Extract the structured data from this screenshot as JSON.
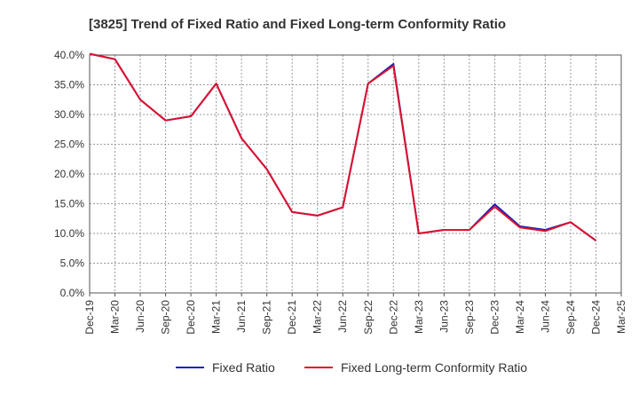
{
  "chart_data": {
    "type": "line",
    "title": "[3825]  Trend of Fixed Ratio and Fixed Long-term Conformity Ratio",
    "xlabel": "",
    "ylabel": "",
    "x_ticks": [
      "Dec-19",
      "Mar-20",
      "Jun-20",
      "Sep-20",
      "Dec-20",
      "Mar-21",
      "Jun-21",
      "Sep-21",
      "Dec-21",
      "Mar-22",
      "Jun-22",
      "Sep-22",
      "Dec-22",
      "Mar-23",
      "Jun-23",
      "Sep-23",
      "Dec-23",
      "Mar-24",
      "Jun-24",
      "Sep-24",
      "Dec-24",
      "Mar-25"
    ],
    "y_ticks": [
      "0.0%",
      "5.0%",
      "10.0%",
      "15.0%",
      "20.0%",
      "25.0%",
      "30.0%",
      "35.0%",
      "40.0%"
    ],
    "ylim": [
      0,
      40
    ],
    "grid": true,
    "legend_position": "bottom",
    "x": [
      "Dec-19",
      "Mar-20",
      "Jun-20",
      "Sep-20",
      "Dec-20",
      "Mar-21",
      "Jun-21",
      "Sep-21",
      "Dec-21",
      "Mar-22",
      "Jun-22",
      "Sep-22",
      "Dec-22",
      "Mar-23",
      "Jun-23",
      "Sep-23",
      "Dec-23",
      "Mar-24",
      "Jun-24",
      "Sep-24",
      "Dec-24"
    ],
    "series": [
      {
        "name": "Fixed Ratio",
        "color": "#1f1fbf",
        "values": [
          40.2,
          39.3,
          32.5,
          29.0,
          29.7,
          35.2,
          26.0,
          20.8,
          13.6,
          13.0,
          14.4,
          35.2,
          38.5,
          10.0,
          10.6,
          10.6,
          14.9,
          11.2,
          10.6,
          11.9,
          8.8
        ]
      },
      {
        "name": "Fixed Long-term Conformity Ratio",
        "color": "#e0102a",
        "values": [
          40.2,
          39.3,
          32.5,
          29.0,
          29.7,
          35.2,
          26.0,
          20.8,
          13.6,
          13.0,
          14.4,
          35.2,
          38.2,
          10.0,
          10.6,
          10.6,
          14.5,
          11.0,
          10.4,
          11.9,
          8.8
        ]
      }
    ]
  }
}
